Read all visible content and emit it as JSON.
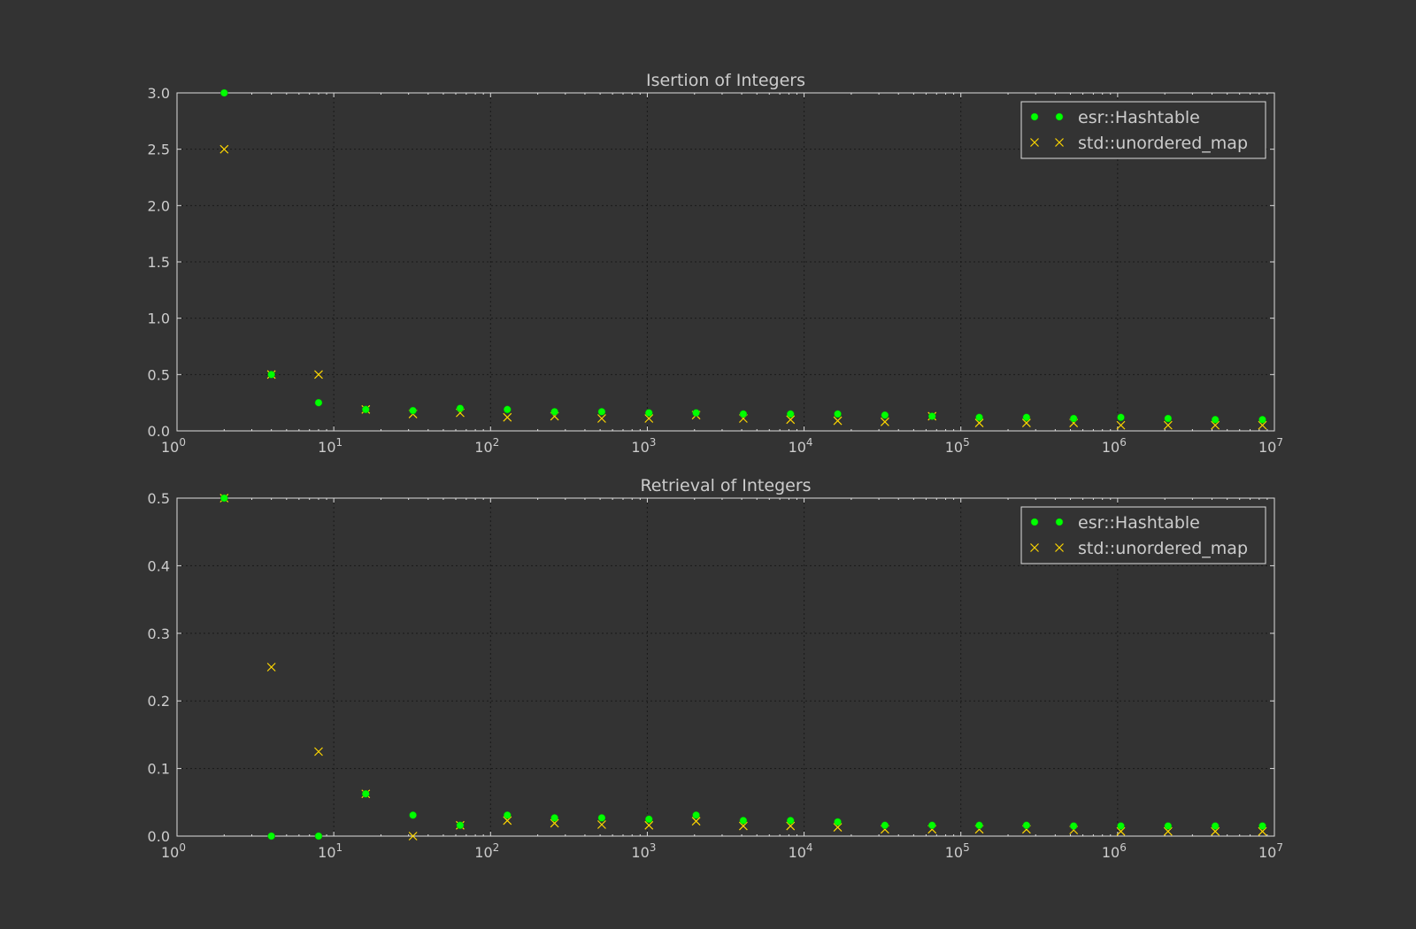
{
  "chart_data": [
    {
      "type": "scatter",
      "title": "Isertion of Integers",
      "xlabel": "",
      "ylabel": "",
      "xscale": "log",
      "xlim": [
        1,
        10000000
      ],
      "ylim": [
        0.0,
        3.0
      ],
      "yticks": [
        "0.0",
        "0.5",
        "1.0",
        "1.5",
        "2.0",
        "2.5",
        "3.0"
      ],
      "xtick_base": "10",
      "xtick_exponents": [
        "0",
        "1",
        "2",
        "3",
        "4",
        "5",
        "6",
        "7"
      ],
      "grid": true,
      "legend_position": "top-right",
      "x": [
        2,
        4,
        8,
        16,
        32,
        64,
        128,
        256,
        512,
        1024,
        2048,
        4096,
        8192,
        16384,
        32768,
        65536,
        131072,
        262144,
        524288,
        1048576,
        2097152,
        4194304,
        8388608
      ],
      "series": [
        {
          "name": "esr::Hashtable",
          "marker": "circle",
          "color": "#00ff00",
          "values": [
            3.0,
            0.5,
            0.25,
            0.19,
            0.18,
            0.2,
            0.19,
            0.17,
            0.17,
            0.16,
            0.16,
            0.15,
            0.15,
            0.15,
            0.14,
            0.13,
            0.12,
            0.12,
            0.11,
            0.12,
            0.11,
            0.1,
            0.1
          ]
        },
        {
          "name": "std::unordered_map",
          "marker": "x",
          "color": "#ffd700",
          "values": [
            2.5,
            0.5,
            0.5,
            0.19,
            0.15,
            0.16,
            0.12,
            0.13,
            0.11,
            0.11,
            0.14,
            0.11,
            0.1,
            0.09,
            0.08,
            0.13,
            0.07,
            0.07,
            0.07,
            0.05,
            0.05,
            0.05,
            0.05
          ]
        }
      ]
    },
    {
      "type": "scatter",
      "title": "Retrieval of Integers",
      "xlabel": "",
      "ylabel": "",
      "xscale": "log",
      "xlim": [
        1,
        10000000
      ],
      "ylim": [
        0.0,
        0.5
      ],
      "yticks": [
        "0.0",
        "0.1",
        "0.2",
        "0.3",
        "0.4",
        "0.5"
      ],
      "xtick_base": "10",
      "xtick_exponents": [
        "0",
        "1",
        "2",
        "3",
        "4",
        "5",
        "6",
        "7"
      ],
      "grid": true,
      "legend_position": "top-right",
      "x": [
        2,
        4,
        8,
        16,
        32,
        64,
        128,
        256,
        512,
        1024,
        2048,
        4096,
        8192,
        16384,
        32768,
        65536,
        131072,
        262144,
        524288,
        1048576,
        2097152,
        4194304,
        8388608
      ],
      "series": [
        {
          "name": "esr::Hashtable",
          "marker": "circle",
          "color": "#00ff00",
          "values": [
            0.5,
            0.0,
            0.0,
            0.0625,
            0.031,
            0.016,
            0.031,
            0.027,
            0.027,
            0.025,
            0.031,
            0.023,
            0.023,
            0.021,
            0.016,
            0.016,
            0.016,
            0.016,
            0.015,
            0.015,
            0.015,
            0.015,
            0.015
          ]
        },
        {
          "name": "std::unordered_map",
          "marker": "x",
          "color": "#ffd700",
          "values": [
            0.5,
            0.25,
            0.125,
            0.0625,
            0.0,
            0.016,
            0.023,
            0.019,
            0.017,
            0.016,
            0.022,
            0.015,
            0.015,
            0.013,
            0.01,
            0.01,
            0.01,
            0.01,
            0.009,
            0.007,
            0.007,
            0.007,
            0.007
          ]
        }
      ]
    }
  ]
}
